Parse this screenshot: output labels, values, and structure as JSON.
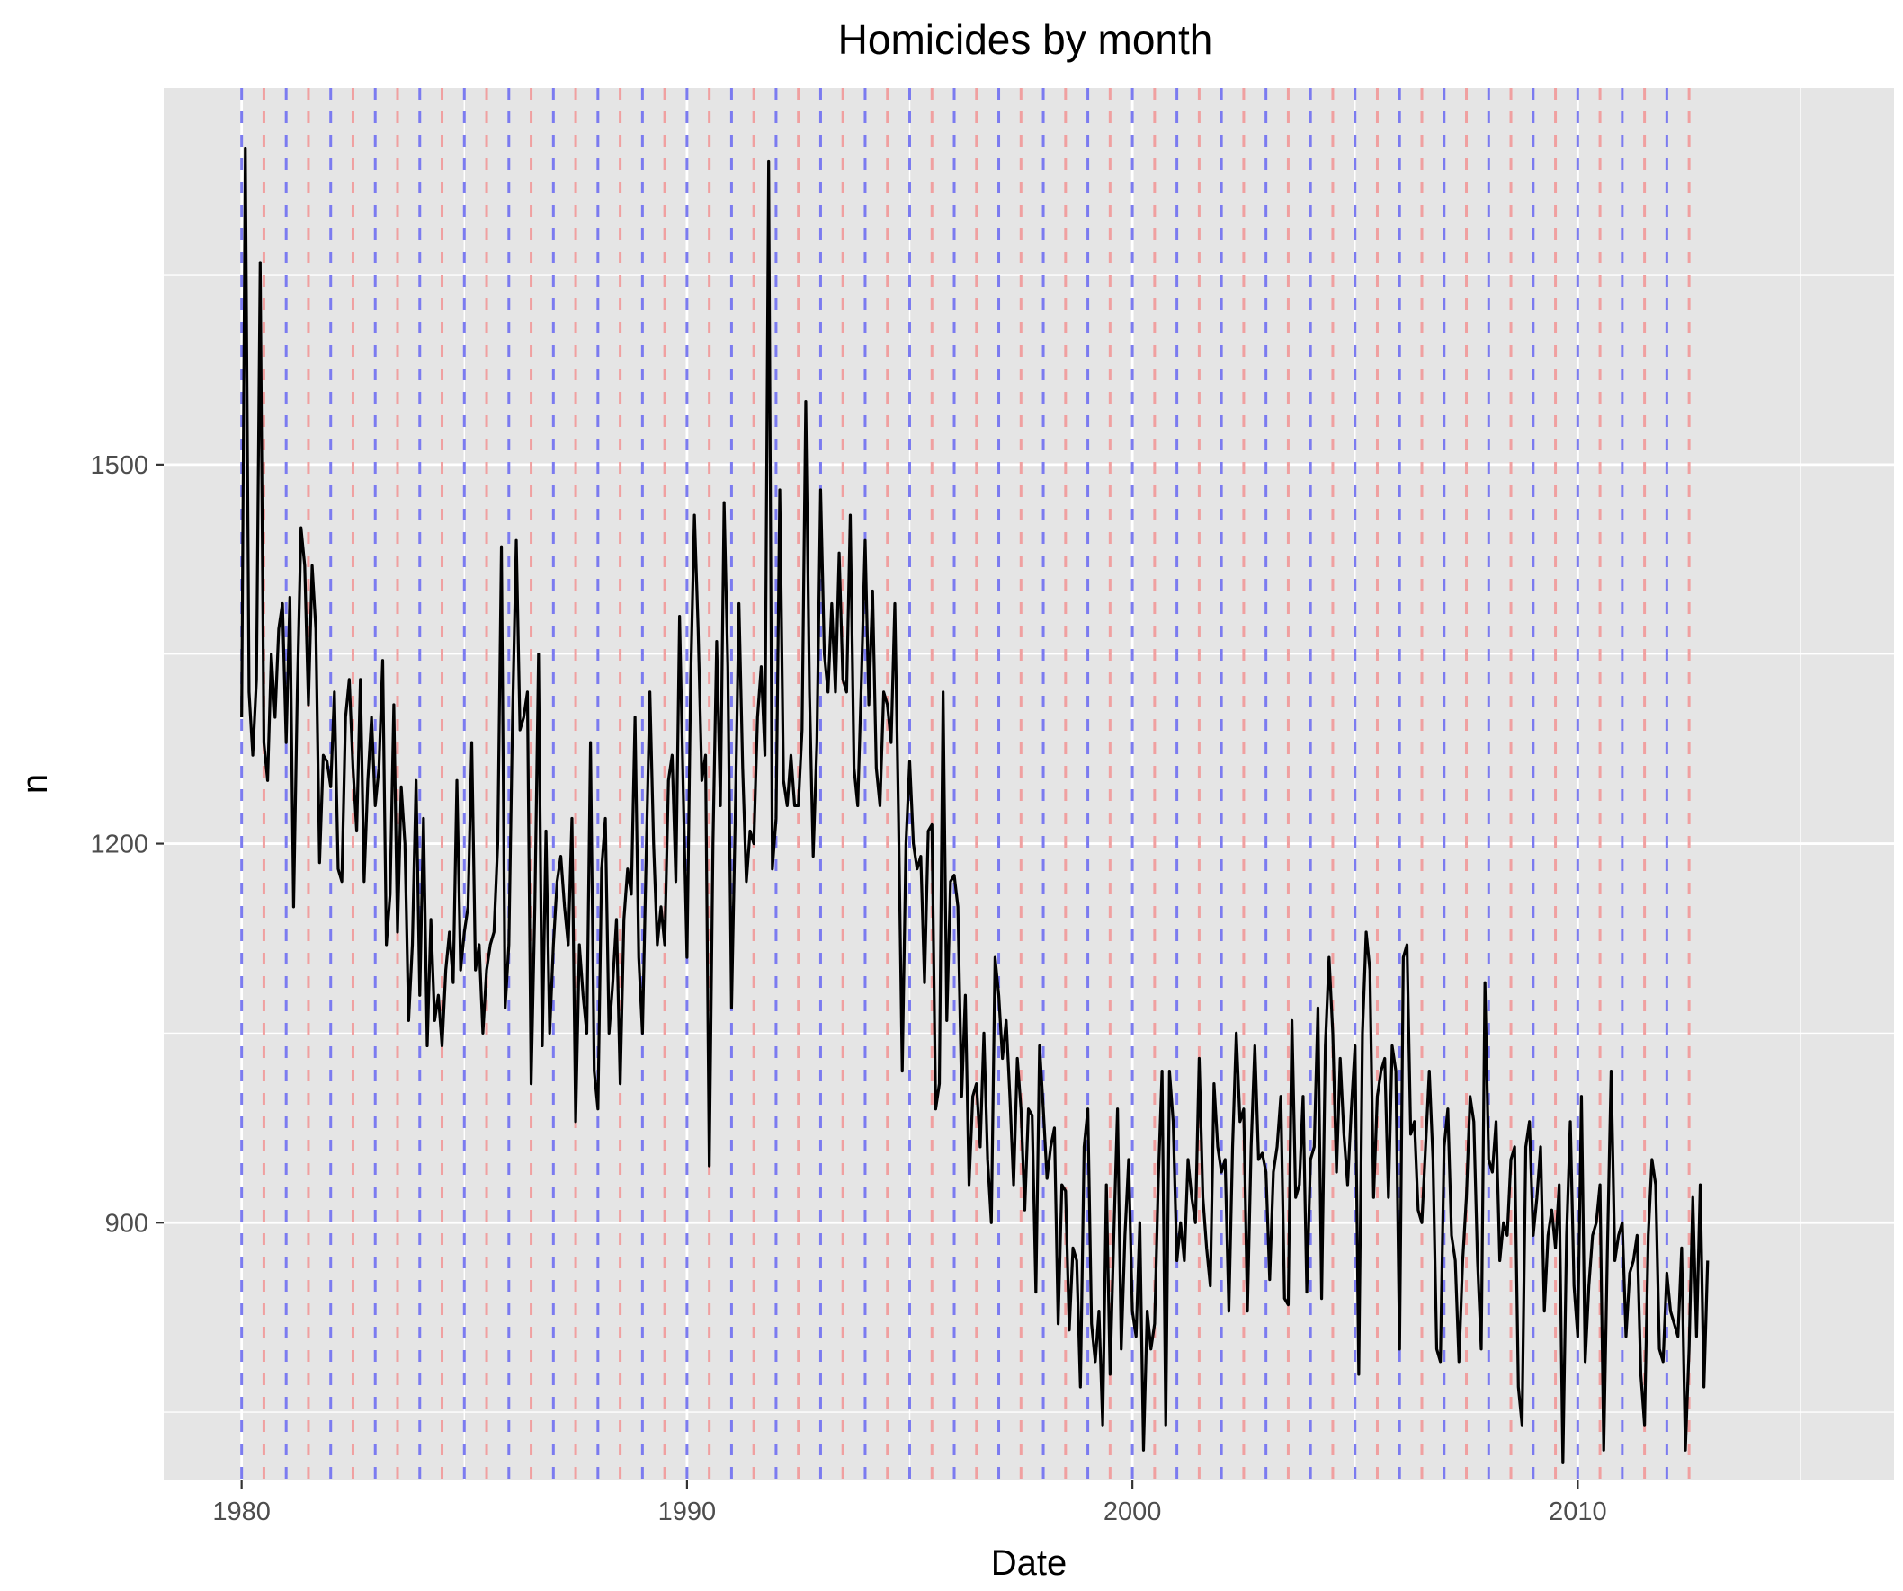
{
  "chart_data": {
    "type": "line",
    "title": "Homicides by month",
    "xlabel": "Date",
    "ylabel": "n",
    "x_axis": {
      "range": [
        1978.25,
        2017.1
      ],
      "major_ticks": [
        1980,
        1990,
        2000,
        2010
      ],
      "minor_ticks": [
        1985,
        1995,
        2005,
        2015
      ],
      "tick_labels": [
        "1980",
        "1990",
        "2000",
        "2010"
      ]
    },
    "y_axis": {
      "range": [
        696,
        1798
      ],
      "major_ticks": [
        900,
        1200,
        1500
      ],
      "minor_ticks": [
        750,
        1050,
        1350,
        1650
      ],
      "tick_labels": [
        "900",
        "1200",
        "1500"
      ]
    },
    "grid": true,
    "background": "#e5e5e5",
    "gridline_color": "#ffffff",
    "series": [
      {
        "line_color": "#000000",
        "x_start": 1980.0,
        "x_step": 0.08333,
        "values": [
          1300,
          1750,
          1320,
          1270,
          1330,
          1660,
          1280,
          1250,
          1350,
          1300,
          1370,
          1390,
          1280,
          1395,
          1150,
          1320,
          1450,
          1420,
          1310,
          1420,
          1370,
          1185,
          1270,
          1265,
          1245,
          1320,
          1180,
          1170,
          1300,
          1330,
          1260,
          1210,
          1330,
          1170,
          1250,
          1300,
          1230,
          1260,
          1345,
          1120,
          1160,
          1310,
          1130,
          1245,
          1200,
          1060,
          1120,
          1250,
          1080,
          1220,
          1040,
          1140,
          1060,
          1080,
          1040,
          1100,
          1130,
          1090,
          1250,
          1100,
          1130,
          1150,
          1280,
          1100,
          1120,
          1050,
          1100,
          1120,
          1130,
          1200,
          1435,
          1070,
          1120,
          1300,
          1440,
          1290,
          1300,
          1320,
          1010,
          1150,
          1350,
          1040,
          1210,
          1050,
          1120,
          1170,
          1190,
          1150,
          1120,
          1220,
          980,
          1120,
          1080,
          1050,
          1280,
          1020,
          990,
          1180,
          1220,
          1050,
          1090,
          1140,
          1010,
          1140,
          1180,
          1160,
          1300,
          1110,
          1050,
          1190,
          1320,
          1200,
          1120,
          1150,
          1120,
          1250,
          1270,
          1170,
          1380,
          1240,
          1110,
          1330,
          1460,
          1370,
          1250,
          1270,
          945,
          1200,
          1360,
          1230,
          1470,
          1340,
          1070,
          1220,
          1390,
          1260,
          1170,
          1210,
          1200,
          1300,
          1340,
          1270,
          1740,
          1180,
          1220,
          1480,
          1250,
          1230,
          1270,
          1230,
          1230,
          1290,
          1550,
          1320,
          1190,
          1280,
          1480,
          1350,
          1320,
          1390,
          1320,
          1430,
          1330,
          1320,
          1460,
          1260,
          1230,
          1330,
          1440,
          1310,
          1400,
          1260,
          1230,
          1320,
          1310,
          1280,
          1390,
          1220,
          1020,
          1200,
          1265,
          1200,
          1180,
          1190,
          1090,
          1210,
          1215,
          990,
          1010,
          1320,
          1060,
          1170,
          1175,
          1150,
          1000,
          1080,
          930,
          1000,
          1010,
          960,
          1050,
          950,
          900,
          1110,
          1080,
          1030,
          1060,
          1000,
          930,
          1030,
          990,
          910,
          990,
          985,
          845,
          1040,
          990,
          935,
          960,
          975,
          820,
          930,
          925,
          815,
          880,
          870,
          770,
          960,
          990,
          820,
          790,
          830,
          740,
          930,
          780,
          890,
          990,
          800,
          890,
          950,
          830,
          810,
          900,
          720,
          830,
          800,
          820,
          935,
          1020,
          740,
          1020,
          980,
          870,
          900,
          870,
          950,
          920,
          900,
          1030,
          920,
          880,
          850,
          1010,
          960,
          940,
          950,
          830,
          960,
          1050,
          980,
          990,
          830,
          960,
          1040,
          950,
          955,
          940,
          855,
          940,
          960,
          1000,
          840,
          835,
          1060,
          920,
          930,
          1000,
          845,
          950,
          960,
          1070,
          840,
          1040,
          1110,
          1050,
          940,
          1030,
          970,
          930,
          990,
          1040,
          780,
          1050,
          1130,
          1100,
          920,
          1000,
          1020,
          1030,
          920,
          1040,
          1020,
          800,
          1110,
          1120,
          970,
          980,
          910,
          900,
          960,
          1020,
          950,
          800,
          790,
          960,
          990,
          890,
          870,
          790,
          870,
          920,
          1000,
          980,
          870,
          800,
          1090,
          950,
          940,
          980,
          870,
          900,
          890,
          950,
          960,
          770,
          740,
          960,
          980,
          890,
          920,
          960,
          830,
          890,
          910,
          880,
          930,
          710,
          890,
          980,
          850,
          810,
          1000,
          790,
          850,
          890,
          900,
          930,
          720,
          880,
          1020,
          870,
          890,
          900,
          810,
          860,
          870,
          890,
          780,
          740,
          890,
          950,
          930,
          800,
          790,
          860,
          830,
          820,
          810,
          880,
          720,
          800,
          920,
          810,
          930,
          770,
          870
        ]
      }
    ],
    "reference_lines": [
      {
        "color": "#7b7bf0",
        "style": "dashed",
        "month_offset": 0,
        "interval_months": 12
      },
      {
        "color": "#f0a0a0",
        "style": "dashed",
        "month_offset": 6,
        "interval_months": 12
      }
    ]
  }
}
